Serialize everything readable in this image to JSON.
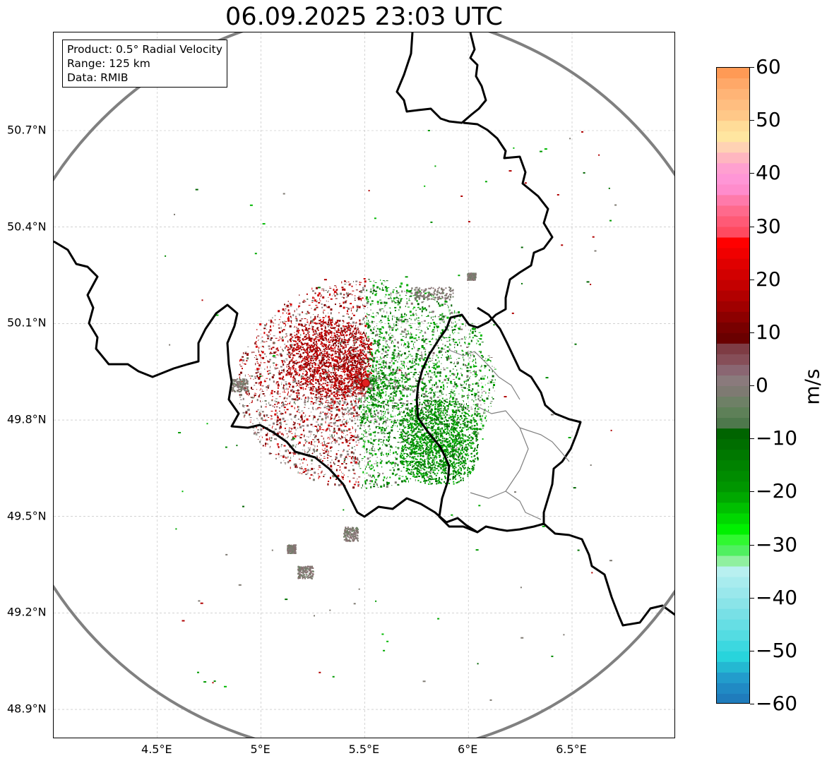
{
  "title": "06.09.2025 23:03 UTC",
  "info_box": {
    "product": "Product: 0.5° Radial Velocity",
    "range": "Range: 125 km",
    "source": "Data: RMIB"
  },
  "map": {
    "lon_range": [
      4.0,
      7.0
    ],
    "lat_range": [
      48.8,
      51.0
    ],
    "lat_ticks": [
      {
        "value": 50.7,
        "label": "50.7°N"
      },
      {
        "value": 50.4,
        "label": "50.4°N"
      },
      {
        "value": 50.1,
        "label": "50.1°N"
      },
      {
        "value": 49.8,
        "label": "49.8°N"
      },
      {
        "value": 49.5,
        "label": "49.5°N"
      },
      {
        "value": 49.2,
        "label": "49.2°N"
      },
      {
        "value": 48.9,
        "label": "48.9°N"
      }
    ],
    "lon_ticks": [
      {
        "value": 4.5,
        "label": "4.5°E"
      },
      {
        "value": 5.0,
        "label": "5°E"
      },
      {
        "value": 5.5,
        "label": "5.5°E"
      },
      {
        "value": 6.0,
        "label": "6°E"
      },
      {
        "value": 6.5,
        "label": "6.5°E"
      }
    ],
    "radar_site": {
      "lon": 5.505,
      "lat": 49.915
    },
    "range_km": 125,
    "colors": {
      "range_ring": "#808080",
      "border": "#000000",
      "subborder": "#808080",
      "site_marker": "#e02020"
    }
  },
  "colorbar": {
    "unit": "m/s",
    "min": -60,
    "max": 60,
    "ticks": [
      {
        "value": 60,
        "label": "60"
      },
      {
        "value": 50,
        "label": "50"
      },
      {
        "value": 40,
        "label": "40"
      },
      {
        "value": 30,
        "label": "30"
      },
      {
        "value": 20,
        "label": "20"
      },
      {
        "value": 10,
        "label": "10"
      },
      {
        "value": 0,
        "label": "0"
      },
      {
        "value": -10,
        "label": "−10"
      },
      {
        "value": -20,
        "label": "−20"
      },
      {
        "value": -30,
        "label": "−30"
      },
      {
        "value": -40,
        "label": "−40"
      },
      {
        "value": -50,
        "label": "−50"
      },
      {
        "value": -60,
        "label": "−60"
      }
    ],
    "bands": [
      {
        "from": 58,
        "to": 60,
        "color": "#ff9a55"
      },
      {
        "from": 56,
        "to": 58,
        "color": "#ffa868"
      },
      {
        "from": 54,
        "to": 56,
        "color": "#ffb476"
      },
      {
        "from": 52,
        "to": 54,
        "color": "#ffbe80"
      },
      {
        "from": 50,
        "to": 52,
        "color": "#ffc888"
      },
      {
        "from": 48,
        "to": 50,
        "color": "#ffdc98"
      },
      {
        "from": 46,
        "to": 48,
        "color": "#ffe6a0"
      },
      {
        "from": 44,
        "to": 46,
        "color": "#ffd2b4"
      },
      {
        "from": 42,
        "to": 44,
        "color": "#ffb6c0"
      },
      {
        "from": 40,
        "to": 42,
        "color": "#ffa0d0"
      },
      {
        "from": 38,
        "to": 40,
        "color": "#ff96d6"
      },
      {
        "from": 36,
        "to": 38,
        "color": "#ff8ccc"
      },
      {
        "from": 34,
        "to": 36,
        "color": "#ff7aaa"
      },
      {
        "from": 32,
        "to": 34,
        "color": "#ff6a8c"
      },
      {
        "from": 30,
        "to": 32,
        "color": "#ff5a76"
      },
      {
        "from": 28,
        "to": 30,
        "color": "#ff4a60"
      },
      {
        "from": 26,
        "to": 28,
        "color": "#ff0000"
      },
      {
        "from": 24,
        "to": 26,
        "color": "#f00000"
      },
      {
        "from": 22,
        "to": 24,
        "color": "#e00000"
      },
      {
        "from": 20,
        "to": 22,
        "color": "#d20000"
      },
      {
        "from": 18,
        "to": 20,
        "color": "#c40000"
      },
      {
        "from": 16,
        "to": 18,
        "color": "#b20000"
      },
      {
        "from": 14,
        "to": 16,
        "color": "#a00000"
      },
      {
        "from": 12,
        "to": 14,
        "color": "#8c0000"
      },
      {
        "from": 10,
        "to": 12,
        "color": "#780000"
      },
      {
        "from": 8,
        "to": 10,
        "color": "#6a0000"
      },
      {
        "from": 6,
        "to": 8,
        "color": "#7e3c44"
      },
      {
        "from": 4,
        "to": 6,
        "color": "#864e58"
      },
      {
        "from": 2,
        "to": 4,
        "color": "#8a6672"
      },
      {
        "from": 0,
        "to": 2,
        "color": "#8a7a7c"
      },
      {
        "from": -2,
        "to": 0,
        "color": "#7e7a72"
      },
      {
        "from": -4,
        "to": -2,
        "color": "#6e8066"
      },
      {
        "from": -6,
        "to": -4,
        "color": "#5e8058"
      },
      {
        "from": -8,
        "to": -6,
        "color": "#4e784c"
      },
      {
        "from": -10,
        "to": -8,
        "color": "#006400"
      },
      {
        "from": -12,
        "to": -10,
        "color": "#006e00"
      },
      {
        "from": -14,
        "to": -12,
        "color": "#007800"
      },
      {
        "from": -16,
        "to": -14,
        "color": "#008200"
      },
      {
        "from": -18,
        "to": -16,
        "color": "#008c00"
      },
      {
        "from": -20,
        "to": -18,
        "color": "#009600"
      },
      {
        "from": -22,
        "to": -20,
        "color": "#00a800"
      },
      {
        "from": -24,
        "to": -22,
        "color": "#00c000"
      },
      {
        "from": -26,
        "to": -24,
        "color": "#00d800"
      },
      {
        "from": -28,
        "to": -26,
        "color": "#00f000"
      },
      {
        "from": -30,
        "to": -28,
        "color": "#30f830"
      },
      {
        "from": -32,
        "to": -30,
        "color": "#50f060"
      },
      {
        "from": -34,
        "to": -32,
        "color": "#90f0a0"
      },
      {
        "from": -36,
        "to": -34,
        "color": "#b8f0f0"
      },
      {
        "from": -38,
        "to": -36,
        "color": "#a8ecee"
      },
      {
        "from": -40,
        "to": -38,
        "color": "#9ae8ec"
      },
      {
        "from": -42,
        "to": -40,
        "color": "#8ae4e8"
      },
      {
        "from": -44,
        "to": -42,
        "color": "#78e0e6"
      },
      {
        "from": -46,
        "to": -44,
        "color": "#66dee4"
      },
      {
        "from": -48,
        "to": -46,
        "color": "#54dce2"
      },
      {
        "from": -50,
        "to": -48,
        "color": "#3cd8e0"
      },
      {
        "from": -52,
        "to": -50,
        "color": "#28d4dc"
      },
      {
        "from": -54,
        "to": -52,
        "color": "#24b8d2"
      },
      {
        "from": -56,
        "to": -54,
        "color": "#229ccc"
      },
      {
        "from": -58,
        "to": -56,
        "color": "#208ac4"
      },
      {
        "from": -60,
        "to": -58,
        "color": "#1f7cbc"
      }
    ]
  }
}
